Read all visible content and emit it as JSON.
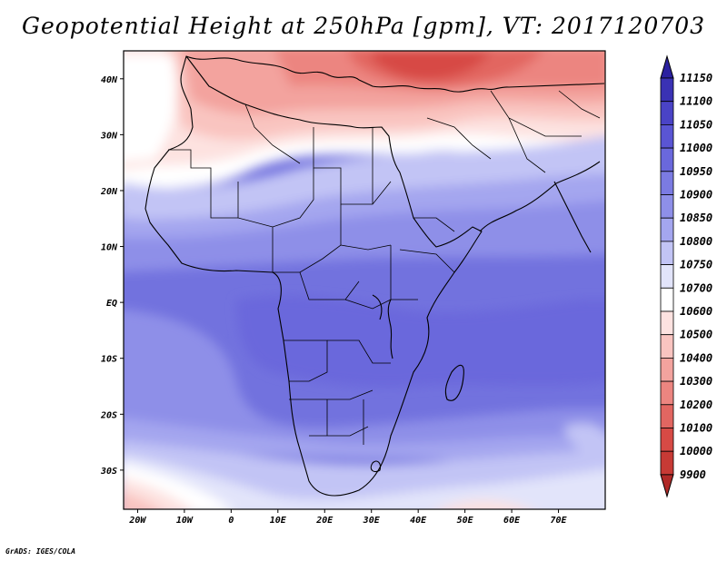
{
  "title": "Geopotential Height at 250hPa [gpm], VT: 2017120703",
  "footer": "GrADS: IGES/COLA",
  "map": {
    "lon_range": [
      -23,
      80
    ],
    "lat_range": [
      -37,
      45
    ],
    "x_ticks": [
      {
        "lon": -20,
        "label": "20W"
      },
      {
        "lon": -10,
        "label": "10W"
      },
      {
        "lon": 0,
        "label": "0"
      },
      {
        "lon": 10,
        "label": "10E"
      },
      {
        "lon": 20,
        "label": "20E"
      },
      {
        "lon": 30,
        "label": "30E"
      },
      {
        "lon": 40,
        "label": "40E"
      },
      {
        "lon": 50,
        "label": "50E"
      },
      {
        "lon": 60,
        "label": "60E"
      },
      {
        "lon": 70,
        "label": "70E"
      }
    ],
    "y_ticks": [
      {
        "lat": 40,
        "label": "40N"
      },
      {
        "lat": 30,
        "label": "30N"
      },
      {
        "lat": 20,
        "label": "20N"
      },
      {
        "lat": 10,
        "label": "10N"
      },
      {
        "lat": 0,
        "label": "EQ"
      },
      {
        "lat": -10,
        "label": "10S"
      },
      {
        "lat": -20,
        "label": "20S"
      },
      {
        "lat": -30,
        "label": "30S"
      }
    ]
  },
  "colorbar": {
    "levels": [
      "11150",
      "11100",
      "11050",
      "11000",
      "10950",
      "10900",
      "10850",
      "10800",
      "10750",
      "10700",
      "10600",
      "10500",
      "10400",
      "10300",
      "10200",
      "10100",
      "10000",
      "9900"
    ],
    "colors": [
      "#2b21a0",
      "#3a32b4",
      "#4a43c6",
      "#5a55d4",
      "#6a68dc",
      "#7b7be2",
      "#8e8fe8",
      "#a4a6ef",
      "#c2c4f5",
      "#e2e4fa",
      "#ffffff",
      "#fde2e0",
      "#f9c4c0",
      "#f3a39e",
      "#ec8580",
      "#e26661",
      "#d74a45",
      "#c73a35",
      "#b02a28"
    ]
  }
}
